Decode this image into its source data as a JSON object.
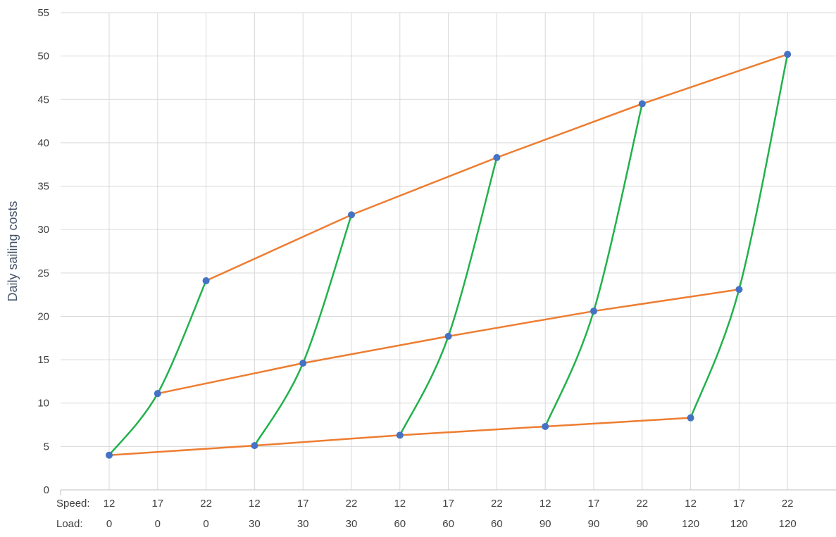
{
  "chart_data": {
    "type": "scatter",
    "title": "",
    "xlabel": "",
    "ylabel": "Daily sailing costs",
    "ylim": [
      0,
      55
    ],
    "yticks": [
      0,
      5,
      10,
      15,
      20,
      25,
      30,
      35,
      40,
      45,
      50,
      55
    ],
    "grid": true,
    "legend": "none",
    "x_row_labels": [
      "Speed:",
      "Load:"
    ],
    "categories": [
      {
        "speed": "12",
        "load": "0"
      },
      {
        "speed": "17",
        "load": "0"
      },
      {
        "speed": "22",
        "load": "0"
      },
      {
        "speed": "12",
        "load": "30"
      },
      {
        "speed": "17",
        "load": "30"
      },
      {
        "speed": "22",
        "load": "30"
      },
      {
        "speed": "12",
        "load": "60"
      },
      {
        "speed": "17",
        "load": "60"
      },
      {
        "speed": "22",
        "load": "60"
      },
      {
        "speed": "12",
        "load": "90"
      },
      {
        "speed": "17",
        "load": "90"
      },
      {
        "speed": "22",
        "load": "90"
      },
      {
        "speed": "12",
        "load": "120"
      },
      {
        "speed": "17",
        "load": "120"
      },
      {
        "speed": "22",
        "load": "120"
      }
    ],
    "points": [
      4.0,
      11.1,
      24.1,
      5.1,
      14.6,
      31.7,
      6.3,
      17.7,
      38.3,
      7.3,
      20.6,
      44.5,
      8.3,
      23.1,
      50.2
    ],
    "constant_speed_lines": [
      {
        "speed": "12",
        "indices": [
          0,
          3,
          6,
          9,
          12
        ],
        "values": [
          4.0,
          5.1,
          6.3,
          7.3,
          8.3
        ]
      },
      {
        "speed": "17",
        "indices": [
          1,
          4,
          7,
          10,
          13
        ],
        "values": [
          11.1,
          14.6,
          17.7,
          20.6,
          23.1
        ]
      },
      {
        "speed": "22",
        "indices": [
          2,
          5,
          8,
          11,
          14
        ],
        "values": [
          24.1,
          31.7,
          38.3,
          44.5,
          50.2
        ]
      }
    ],
    "constant_load_curves": [
      {
        "load": "0",
        "indices": [
          0,
          1,
          2
        ],
        "values": [
          4.0,
          11.1,
          24.1
        ]
      },
      {
        "load": "30",
        "indices": [
          3,
          4,
          5
        ],
        "values": [
          5.1,
          14.6,
          31.7
        ]
      },
      {
        "load": "60",
        "indices": [
          6,
          7,
          8
        ],
        "values": [
          6.3,
          17.7,
          38.3
        ]
      },
      {
        "load": "90",
        "indices": [
          9,
          10,
          11
        ],
        "values": [
          7.3,
          20.6,
          44.5
        ]
      },
      {
        "load": "120",
        "indices": [
          12,
          13,
          14
        ],
        "values": [
          8.3,
          23.1,
          50.2
        ]
      }
    ],
    "colors": {
      "points": "#4472c4",
      "constant_speed_lines": "#ed7d31",
      "constant_load_curves": "#22b14c",
      "grid": "#d9d9d9",
      "axis": "#bfbfbf"
    }
  }
}
